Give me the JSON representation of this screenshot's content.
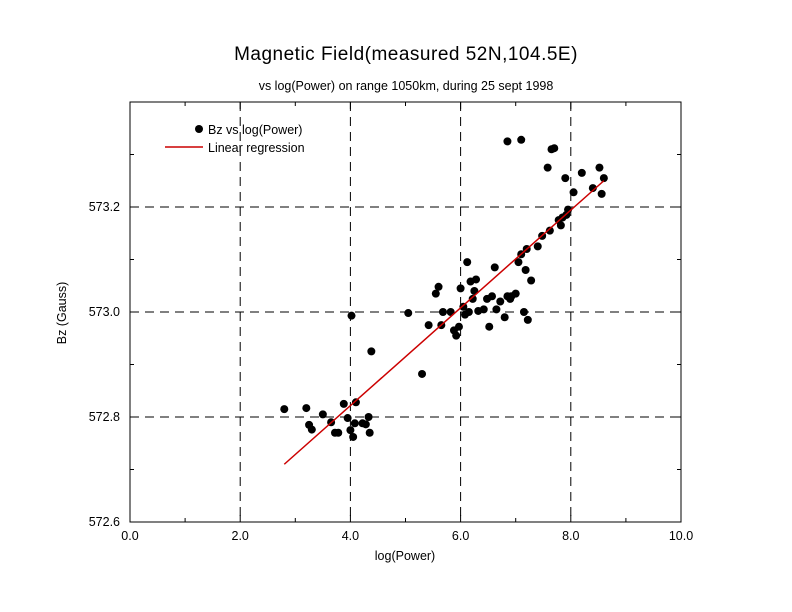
{
  "chart_data": {
    "type": "scatter",
    "title": "Magnetic Field(measured 52N,104.5E)",
    "subtitle": "vs log(Power) on range 1050km, during 25 sept 1998",
    "xlabel": "log(Power)",
    "ylabel": "Bz (Gauss)",
    "xlim": [
      0.0,
      10.0
    ],
    "ylim": [
      572.6,
      573.4
    ],
    "x_ticks": [
      "0.0",
      "2.0",
      "4.0",
      "6.0",
      "8.0",
      "10.0"
    ],
    "y_ticks": [
      "572.6",
      "572.8",
      "573.0",
      "573.2"
    ],
    "x_tick_values": [
      0,
      2,
      4,
      6,
      8,
      10
    ],
    "y_tick_values": [
      572.6,
      572.8,
      573.0,
      573.2
    ],
    "x_gridlines": [
      2,
      4,
      6,
      8
    ],
    "y_gridlines": [
      572.8,
      573.0,
      573.2
    ],
    "grid": "dashed",
    "legend_position": "top-left",
    "series": [
      {
        "name": "Bz vs log(Power)",
        "kind": "points",
        "color": "#000000",
        "points": [
          [
            2.8,
            572.815
          ],
          [
            3.2,
            572.817
          ],
          [
            3.25,
            572.785
          ],
          [
            3.3,
            572.776
          ],
          [
            3.5,
            572.805
          ],
          [
            3.65,
            572.79
          ],
          [
            3.72,
            572.77
          ],
          [
            3.78,
            572.77
          ],
          [
            3.88,
            572.825
          ],
          [
            3.95,
            572.798
          ],
          [
            4.0,
            572.775
          ],
          [
            4.02,
            572.993
          ],
          [
            4.05,
            572.762
          ],
          [
            4.08,
            572.788
          ],
          [
            4.1,
            572.828
          ],
          [
            4.22,
            572.788
          ],
          [
            4.28,
            572.786
          ],
          [
            4.33,
            572.8
          ],
          [
            4.35,
            572.77
          ],
          [
            4.38,
            572.925
          ],
          [
            5.05,
            572.998
          ],
          [
            5.3,
            572.882
          ],
          [
            5.42,
            572.975
          ],
          [
            5.55,
            573.035
          ],
          [
            5.6,
            573.048
          ],
          [
            5.65,
            572.975
          ],
          [
            5.68,
            573.0
          ],
          [
            5.82,
            573.0
          ],
          [
            5.88,
            572.965
          ],
          [
            5.92,
            572.955
          ],
          [
            5.97,
            572.972
          ],
          [
            6.0,
            573.045
          ],
          [
            6.05,
            573.01
          ],
          [
            6.08,
            572.995
          ],
          [
            6.12,
            573.095
          ],
          [
            6.15,
            573.0
          ],
          [
            6.18,
            573.058
          ],
          [
            6.22,
            573.025
          ],
          [
            6.25,
            573.04
          ],
          [
            6.28,
            573.062
          ],
          [
            6.32,
            573.002
          ],
          [
            6.42,
            573.005
          ],
          [
            6.48,
            573.025
          ],
          [
            6.52,
            572.972
          ],
          [
            6.57,
            573.03
          ],
          [
            6.62,
            573.085
          ],
          [
            6.65,
            573.005
          ],
          [
            6.72,
            573.02
          ],
          [
            6.8,
            572.99
          ],
          [
            6.85,
            573.03
          ],
          [
            6.9,
            573.025
          ],
          [
            7.0,
            573.035
          ],
          [
            7.05,
            573.095
          ],
          [
            7.1,
            573.11
          ],
          [
            7.15,
            573.0
          ],
          [
            7.18,
            573.08
          ],
          [
            7.2,
            573.12
          ],
          [
            7.22,
            572.985
          ],
          [
            7.28,
            573.06
          ],
          [
            6.85,
            573.325
          ],
          [
            7.1,
            573.328
          ],
          [
            7.4,
            573.125
          ],
          [
            7.48,
            573.145
          ],
          [
            7.58,
            573.275
          ],
          [
            7.62,
            573.155
          ],
          [
            7.65,
            573.31
          ],
          [
            7.7,
            573.312
          ],
          [
            7.78,
            573.175
          ],
          [
            7.82,
            573.165
          ],
          [
            7.85,
            573.18
          ],
          [
            7.9,
            573.255
          ],
          [
            7.92,
            573.185
          ],
          [
            7.95,
            573.195
          ],
          [
            8.05,
            573.228
          ],
          [
            8.2,
            573.265
          ],
          [
            8.4,
            573.236
          ],
          [
            8.52,
            573.275
          ],
          [
            8.56,
            573.225
          ],
          [
            8.6,
            573.255
          ],
          [
            6.92,
            573.03
          ]
        ]
      },
      {
        "name": "Linear regression",
        "kind": "line",
        "color": "#cc0000",
        "points": [
          [
            2.8,
            572.71
          ],
          [
            8.6,
            573.25
          ]
        ]
      }
    ]
  }
}
